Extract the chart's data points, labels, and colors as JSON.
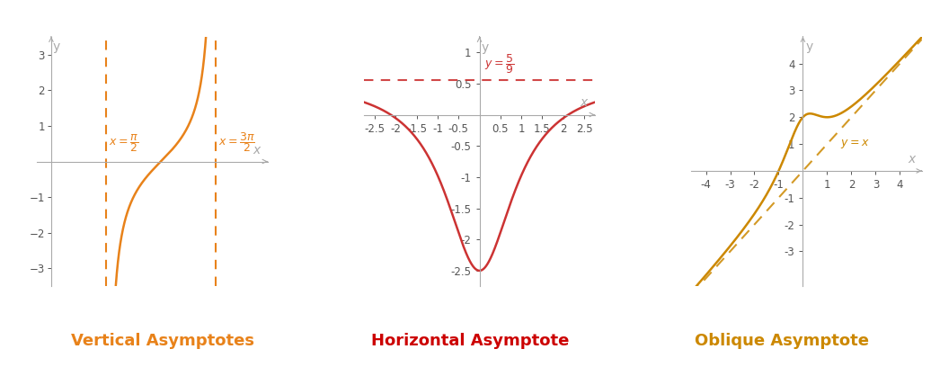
{
  "panel1": {
    "title": "Vertical Asymptotes",
    "title_color": "#E8821A",
    "curve_color": "#E8821A",
    "asymptote_color": "#E8821A",
    "asymp1_x": 1.5707963,
    "asymp2_x": 4.7123889,
    "xlim": [
      -0.4,
      6.2
    ],
    "ylim": [
      -3.5,
      3.5
    ],
    "yticks": [
      -3,
      -2,
      -1,
      1,
      2,
      3
    ]
  },
  "panel2": {
    "title": "Horizontal Asymptote",
    "title_color": "#CC0000",
    "curve_color": "#CC3333",
    "asymptote_color": "#CC3333",
    "asymp_y": 0.5556,
    "xlim": [
      -2.75,
      2.75
    ],
    "ylim": [
      -2.75,
      1.25
    ],
    "yticks": [
      -2.5,
      -2,
      -1.5,
      -1,
      -0.5,
      0.5,
      1
    ],
    "xticks": [
      -2.5,
      -2,
      -1.5,
      -1,
      -0.5,
      0.5,
      1,
      1.5,
      2,
      2.5
    ]
  },
  "panel3": {
    "title": "Oblique Asymptote",
    "title_color": "#CC8800",
    "curve_color": "#CC8800",
    "asymptote_color": "#CC8800",
    "xlim": [
      -4.6,
      4.9
    ],
    "ylim": [
      -4.3,
      5.0
    ],
    "yticks": [
      -3,
      -2,
      -1,
      1,
      2,
      3,
      4
    ],
    "xticks": [
      -4,
      -3,
      -2,
      -1,
      1,
      2,
      3,
      4
    ]
  },
  "bg": "#ffffff",
  "ax_color": "#aaaaaa",
  "tick_color": "#555555",
  "tick_fs": 8.5,
  "title_fs": 13
}
